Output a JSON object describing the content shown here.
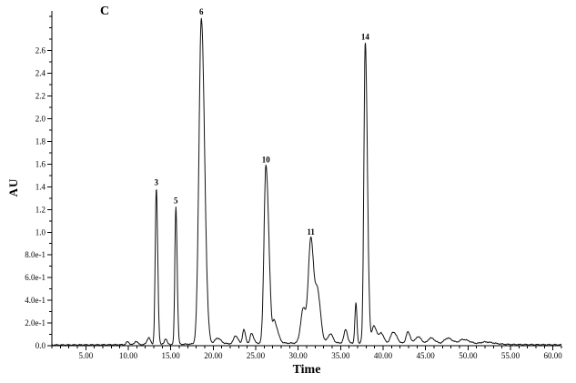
{
  "figure": {
    "panel_label": "C",
    "x_axis_title": "Time",
    "y_axis_title": "AU"
  },
  "chart_data": {
    "type": "line",
    "title": "",
    "xlabel": "Time",
    "ylabel": "AU",
    "xlim": [
      1,
      61
    ],
    "ylim": [
      0,
      2.95
    ],
    "grid": false,
    "legend": "none",
    "trace_color": "#111111",
    "x_ticks": [
      {
        "value": 5,
        "label": "5.00"
      },
      {
        "value": 10,
        "label": "10.00"
      },
      {
        "value": 15,
        "label": "15.00"
      },
      {
        "value": 20,
        "label": "20.00"
      },
      {
        "value": 25,
        "label": "25.00"
      },
      {
        "value": 30,
        "label": "30.00"
      },
      {
        "value": 35,
        "label": "35.00"
      },
      {
        "value": 40,
        "label": "40.00"
      },
      {
        "value": 45,
        "label": "45.00"
      },
      {
        "value": 50,
        "label": "50.00"
      },
      {
        "value": 55,
        "label": "55.00"
      },
      {
        "value": 60,
        "label": "60.00"
      }
    ],
    "y_ticks": [
      {
        "value": 0.0,
        "label": "0.0"
      },
      {
        "value": 0.2,
        "label": "2.0e-1"
      },
      {
        "value": 0.4,
        "label": "4.0e-1"
      },
      {
        "value": 0.6,
        "label": "6.0e-1"
      },
      {
        "value": 0.8,
        "label": "8.0e-1"
      },
      {
        "value": 1.0,
        "label": "1.0"
      },
      {
        "value": 1.2,
        "label": "1.2"
      },
      {
        "value": 1.4,
        "label": "1.4"
      },
      {
        "value": 1.6,
        "label": "1.6"
      },
      {
        "value": 1.8,
        "label": "1.8"
      },
      {
        "value": 2.0,
        "label": "2.0"
      },
      {
        "value": 2.2,
        "label": "2.2"
      },
      {
        "value": 2.4,
        "label": "2.4"
      },
      {
        "value": 2.6,
        "label": "2.6"
      }
    ],
    "peaks": [
      {
        "label": "3",
        "t": 13.3,
        "h": 1.37,
        "sl": 0.13,
        "sr": 0.16
      },
      {
        "label": "5",
        "t": 15.6,
        "h": 1.21,
        "sl": 0.12,
        "sr": 0.15
      },
      {
        "label": "6",
        "t": 18.6,
        "h": 2.87,
        "sl": 0.28,
        "sr": 0.38
      },
      {
        "label": "10",
        "t": 26.2,
        "h": 1.57,
        "sl": 0.22,
        "sr": 0.35
      },
      {
        "label": "11",
        "t": 31.5,
        "h": 0.93,
        "sl": 0.3,
        "sr": 0.35
      },
      {
        "label": "14",
        "t": 37.9,
        "h": 2.65,
        "sl": 0.16,
        "sr": 0.25
      }
    ],
    "minor_peaks": [
      {
        "t": 9.9,
        "h": 0.025,
        "sl": 0.15,
        "sr": 0.2
      },
      {
        "t": 10.9,
        "h": 0.03,
        "sl": 0.15,
        "sr": 0.2
      },
      {
        "t": 12.4,
        "h": 0.06,
        "sl": 0.2,
        "sr": 0.2
      },
      {
        "t": 14.4,
        "h": 0.05,
        "sl": 0.15,
        "sr": 0.15
      },
      {
        "t": 20.5,
        "h": 0.05,
        "sl": 0.3,
        "sr": 0.4
      },
      {
        "t": 22.6,
        "h": 0.07,
        "sl": 0.2,
        "sr": 0.3
      },
      {
        "t": 23.6,
        "h": 0.12,
        "sl": 0.15,
        "sr": 0.2
      },
      {
        "t": 24.5,
        "h": 0.09,
        "sl": 0.15,
        "sr": 0.25
      },
      {
        "t": 27.2,
        "h": 0.18,
        "sl": 0.15,
        "sr": 0.4
      },
      {
        "t": 30.6,
        "h": 0.3,
        "sl": 0.3,
        "sr": 0.3
      },
      {
        "t": 32.3,
        "h": 0.42,
        "sl": 0.25,
        "sr": 0.35
      },
      {
        "t": 33.8,
        "h": 0.08,
        "sl": 0.3,
        "sr": 0.3
      },
      {
        "t": 35.6,
        "h": 0.12,
        "sl": 0.2,
        "sr": 0.2
      },
      {
        "t": 36.8,
        "h": 0.35,
        "sl": 0.12,
        "sr": 0.12
      },
      {
        "t": 38.9,
        "h": 0.15,
        "sl": 0.2,
        "sr": 0.4
      },
      {
        "t": 39.8,
        "h": 0.08,
        "sl": 0.2,
        "sr": 0.3
      },
      {
        "t": 41.2,
        "h": 0.1,
        "sl": 0.3,
        "sr": 0.4
      },
      {
        "t": 42.9,
        "h": 0.1,
        "sl": 0.2,
        "sr": 0.3
      },
      {
        "t": 44.1,
        "h": 0.06,
        "sl": 0.3,
        "sr": 0.4
      },
      {
        "t": 45.6,
        "h": 0.05,
        "sl": 0.3,
        "sr": 0.5
      },
      {
        "t": 47.6,
        "h": 0.05,
        "sl": 0.4,
        "sr": 0.6
      },
      {
        "t": 49.4,
        "h": 0.04,
        "sl": 0.4,
        "sr": 0.8
      },
      {
        "t": 52.0,
        "h": 0.02,
        "sl": 0.5,
        "sr": 1.0
      }
    ],
    "baseline": {
      "base": 0.006,
      "drift_center": 34,
      "drift_height": 0.018,
      "drift_sigma": 13
    },
    "noise_amplitude": 0.0028
  }
}
